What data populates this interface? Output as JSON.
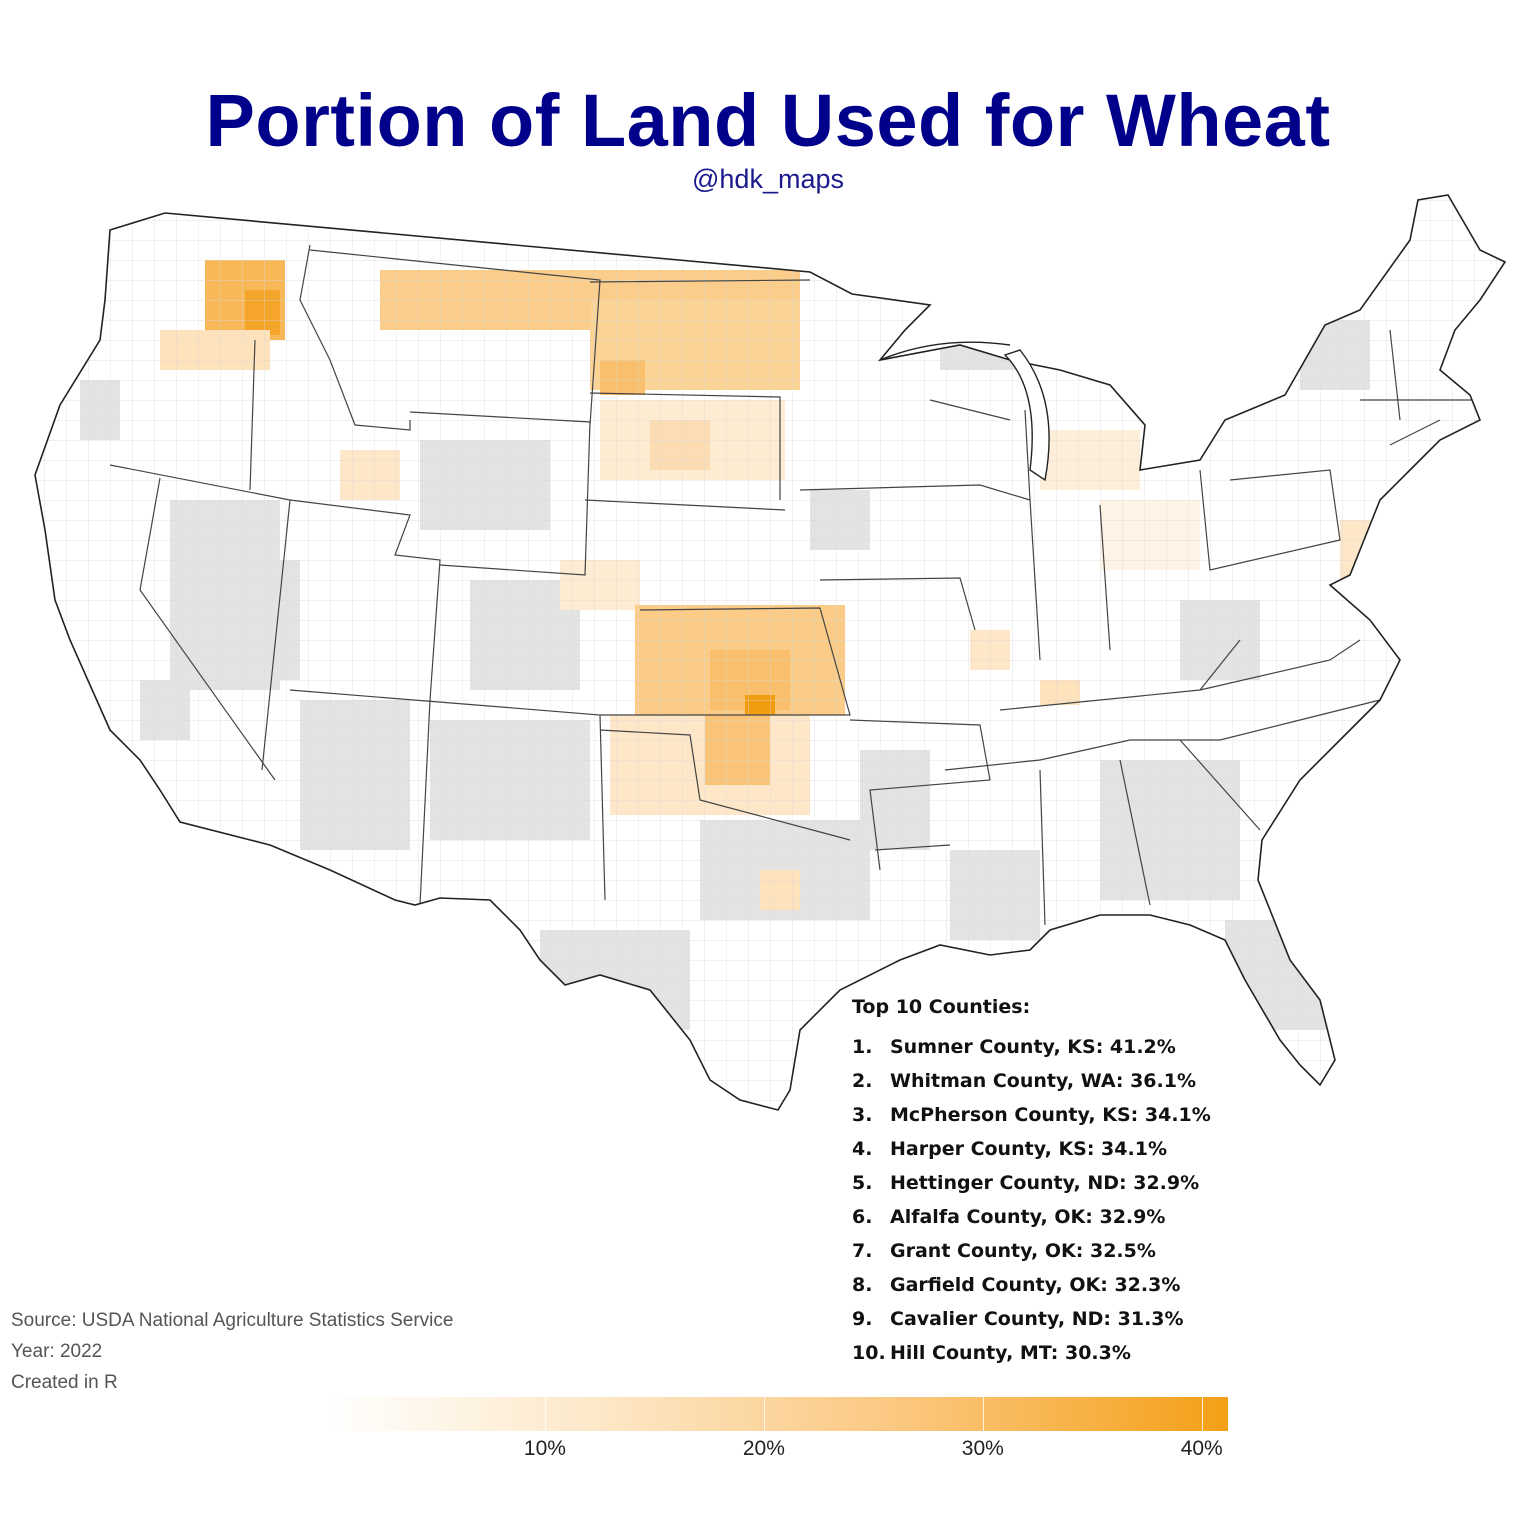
{
  "title": "Portion of Land Used for Wheat",
  "subtitle": "@hdk_maps",
  "top10": {
    "heading": "Top 10 Counties:",
    "items": [
      {
        "rank": "1.",
        "text": "Sumner County, KS: 41.2%"
      },
      {
        "rank": "2.",
        "text": "Whitman County, WA: 36.1%"
      },
      {
        "rank": "3.",
        "text": "McPherson County, KS: 34.1%"
      },
      {
        "rank": "4.",
        "text": "Harper County, KS: 34.1%"
      },
      {
        "rank": "5.",
        "text": "Hettinger County, ND: 32.9%"
      },
      {
        "rank": "6.",
        "text": "Alfalfa County, OK: 32.9%"
      },
      {
        "rank": "7.",
        "text": "Grant County, OK: 32.5%"
      },
      {
        "rank": "8.",
        "text": "Garfield County, OK: 32.3%"
      },
      {
        "rank": "9.",
        "text": "Cavalier County, ND: 31.3%"
      },
      {
        "rank": "10.",
        "text": "Hill County, MT: 30.3%"
      }
    ]
  },
  "notes": {
    "source": "Source: USDA National Agriculture Statistics Service",
    "year": "Year: 2022",
    "created": "Created in R"
  },
  "legend": {
    "min": 0,
    "max": 41.2,
    "ticks": [
      {
        "label": "10%",
        "value": 10
      },
      {
        "label": "20%",
        "value": 20
      },
      {
        "label": "30%",
        "value": 30
      },
      {
        "label": "40%",
        "value": 40
      }
    ],
    "color_low": "#ffffff",
    "color_high": "#f4a017",
    "no_data_color": "#e3e3e3"
  }
}
